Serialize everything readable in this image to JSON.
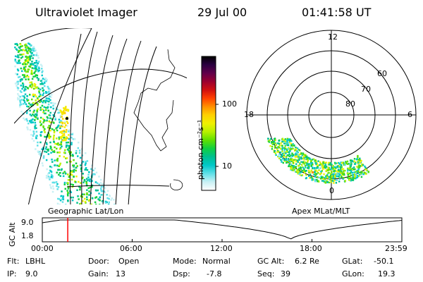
{
  "header": {
    "instrument": "Ultraviolet Imager",
    "date": "29 Jul 00",
    "time": "01:41:58 UT"
  },
  "colorbar": {
    "unit_label": "photon cm⁻²s⁻¹",
    "ticks": [
      "100",
      "10"
    ],
    "scale": "log",
    "colors": [
      "#000000",
      "#2a0040",
      "#60004a",
      "#9a0030",
      "#d01010",
      "#ff4000",
      "#ff9000",
      "#ffd000",
      "#f0f000",
      "#b8f000",
      "#60e000",
      "#10d040",
      "#00c090",
      "#00c8c8",
      "#60e0e8",
      "#c8f0f4",
      "#ffffff"
    ]
  },
  "left_panel": {
    "label": "Geographic Lat/Lon"
  },
  "polar_plot": {
    "label": "Apex MLat/MLT",
    "mlt_labels": [
      "12",
      "18",
      "6",
      "0"
    ],
    "lat_labels": [
      "60",
      "70",
      "80"
    ]
  },
  "orbit": {
    "ylabel": "GC Alt",
    "ytick_top": "9.0",
    "ytick_bottom": "1.8",
    "xticks": [
      "00:00",
      "06:00",
      "12:00",
      "18:00",
      "23:59"
    ],
    "marker_color": "#ff0000",
    "current_time": "01:41:58"
  },
  "footer": {
    "flt_label": "Flt:",
    "flt_value": "LBHL",
    "ip_label": "IP:",
    "ip_value": "9.0",
    "door_label": "Door:",
    "door_value": "Open",
    "gain_label": "Gain:",
    "gain_value": "13",
    "mode_label": "Mode:",
    "mode_value": "Normal",
    "dsp_label": "Dsp:",
    "dsp_value": "-7.8",
    "gcalt_label": "GC Alt:",
    "gcalt_value": "6.2 Re",
    "seq_label": "Seq:",
    "seq_value": "39",
    "glat_label": "GLat:",
    "glat_value": "-50.1",
    "glon_label": "GLon:",
    "glon_value": "19.3"
  }
}
